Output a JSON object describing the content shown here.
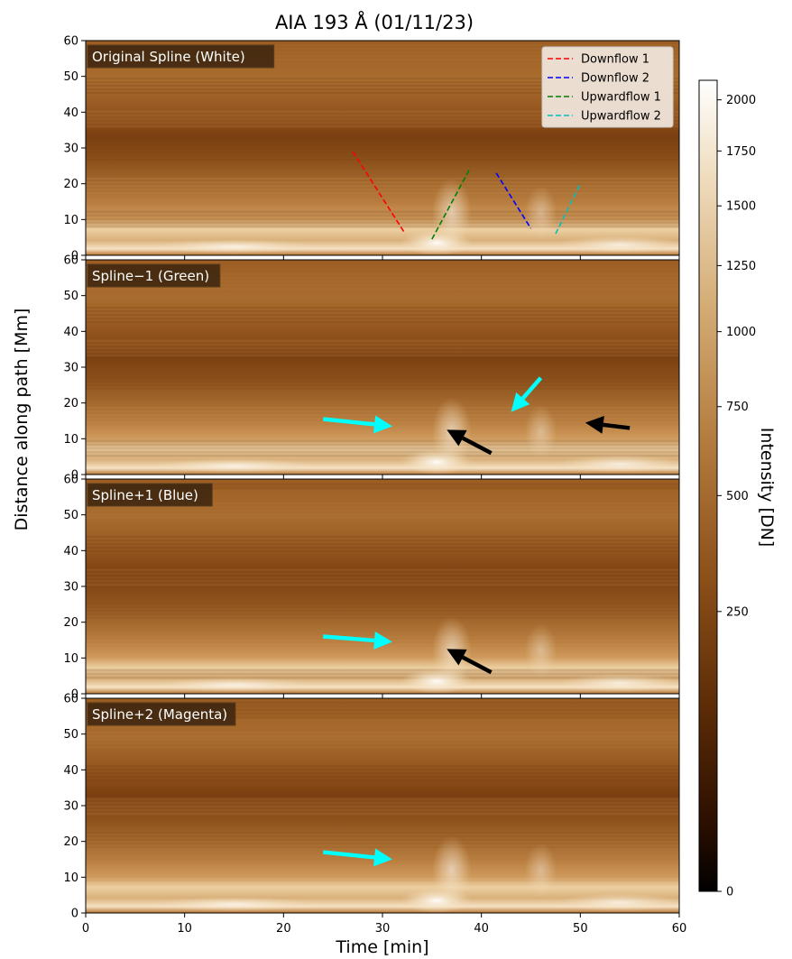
{
  "figure": {
    "title": "AIA 193  Å (01/11/23)",
    "xlabel": "Time [min]",
    "ylabel": "Distance along path [Mm]"
  },
  "colorbar": {
    "label": "Intensity [DN]",
    "ticks": [
      0,
      250,
      500,
      750,
      1000,
      1250,
      1500,
      1750,
      2000
    ],
    "range": [
      0,
      2100
    ],
    "scale": "sqrt",
    "colormap": "sdoaia193",
    "colors": [
      "#000000",
      "#4a1d05",
      "#8a4e18",
      "#c99a5e",
      "#ecd8b6",
      "#ffffff"
    ]
  },
  "chart_data": [
    {
      "type": "heatmap",
      "panel_label": "Original Spline (White)",
      "xlim": [
        0,
        60
      ],
      "ylim": [
        0,
        60
      ],
      "xticks": [
        0,
        10,
        20,
        30,
        40,
        50,
        60
      ],
      "yticks": [
        0,
        10,
        20,
        30,
        40,
        50,
        60
      ],
      "series": [
        {
          "name": "Downflow 1",
          "color": "#ff0000",
          "style": "dashed",
          "x": [
            27,
            32.3
          ],
          "y": [
            29,
            6
          ]
        },
        {
          "name": "Downflow 2",
          "color": "#0000ff",
          "style": "dashed",
          "x": [
            41.5,
            45
          ],
          "y": [
            23,
            7.5
          ]
        },
        {
          "name": "Upwardflow 1",
          "color": "#008000",
          "style": "dashed",
          "x": [
            35,
            38.8
          ],
          "y": [
            4.5,
            24
          ]
        },
        {
          "name": "Upwardflow 2",
          "color": "#00bfbf",
          "style": "dashed",
          "x": [
            47.5,
            50
          ],
          "y": [
            6,
            20
          ]
        }
      ],
      "legend": "top-right",
      "annotations": []
    },
    {
      "type": "heatmap",
      "panel_label": "Spline−1 (Green)",
      "xlim": [
        0,
        60
      ],
      "ylim": [
        0,
        60
      ],
      "xticks": [
        0,
        10,
        20,
        30,
        40,
        50,
        60
      ],
      "yticks": [
        0,
        10,
        20,
        30,
        40,
        50,
        60
      ],
      "series": [],
      "annotations": [
        {
          "type": "arrow",
          "color": "#00ffff",
          "from": [
            24,
            15.5
          ],
          "to": [
            31,
            13.5
          ]
        },
        {
          "type": "arrow",
          "color": "#000000",
          "from": [
            41,
            6
          ],
          "to": [
            36.5,
            12.5
          ]
        },
        {
          "type": "arrow",
          "color": "#00ffff",
          "from": [
            46,
            27
          ],
          "to": [
            43,
            17.5
          ]
        },
        {
          "type": "arrow",
          "color": "#000000",
          "from": [
            55,
            13
          ],
          "to": [
            50.5,
            14.5
          ]
        }
      ]
    },
    {
      "type": "heatmap",
      "panel_label": "Spline+1 (Blue)",
      "xlim": [
        0,
        60
      ],
      "ylim": [
        0,
        60
      ],
      "xticks": [
        0,
        10,
        20,
        30,
        40,
        50,
        60
      ],
      "yticks": [
        0,
        10,
        20,
        30,
        40,
        50,
        60
      ],
      "series": [],
      "annotations": [
        {
          "type": "arrow",
          "color": "#00ffff",
          "from": [
            24,
            16
          ],
          "to": [
            31,
            14.5
          ]
        },
        {
          "type": "arrow",
          "color": "#000000",
          "from": [
            41,
            6
          ],
          "to": [
            36.5,
            12.5
          ]
        }
      ]
    },
    {
      "type": "heatmap",
      "panel_label": "Spline+2 (Magenta)",
      "xlim": [
        0,
        60
      ],
      "ylim": [
        0,
        60
      ],
      "xticks": [
        0,
        10,
        20,
        30,
        40,
        50,
        60
      ],
      "yticks": [
        0,
        10,
        20,
        30,
        40,
        50,
        60
      ],
      "series": [],
      "annotations": [
        {
          "type": "arrow",
          "color": "#00ffff",
          "from": [
            24,
            17
          ],
          "to": [
            31,
            15
          ]
        }
      ]
    }
  ]
}
